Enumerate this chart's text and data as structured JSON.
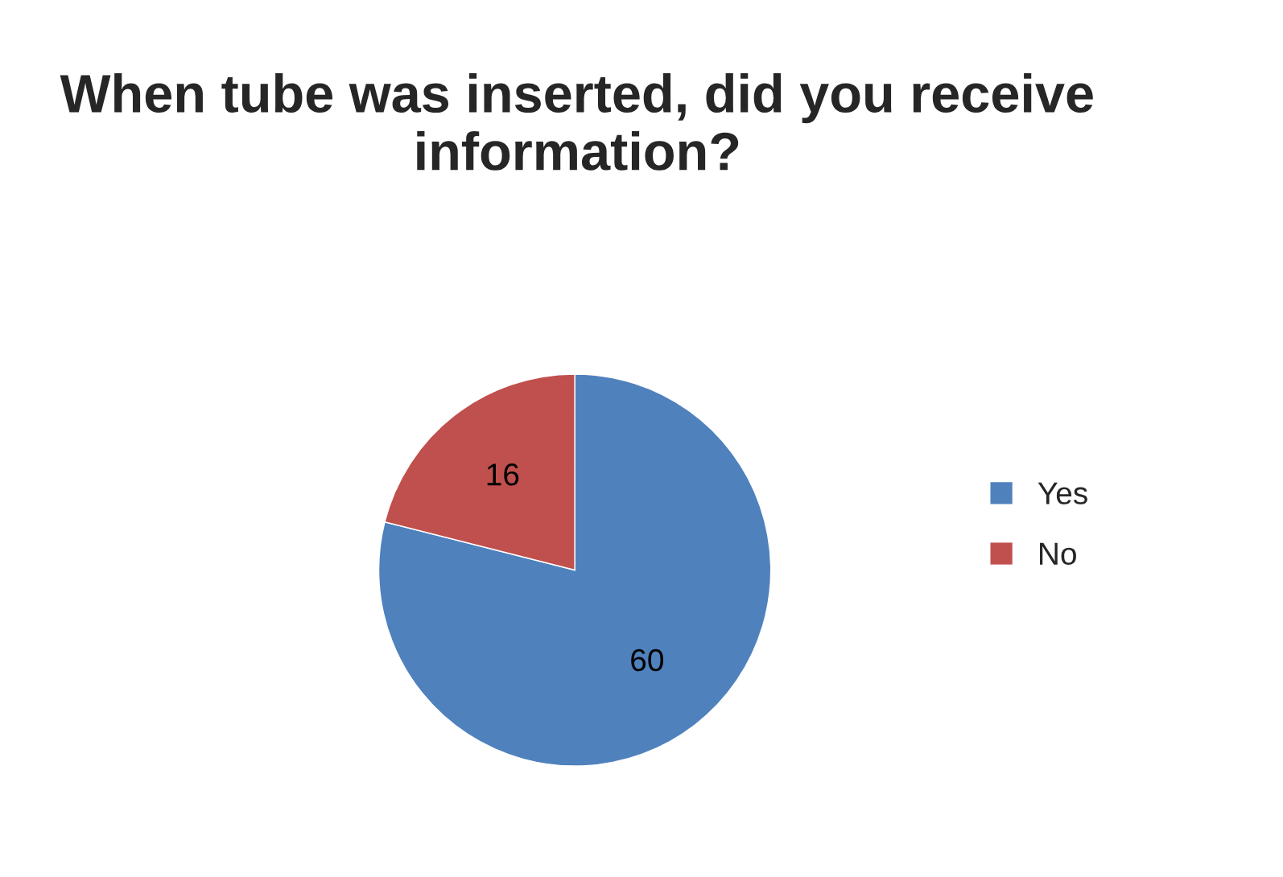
{
  "chart_data": {
    "type": "pie",
    "title": "When tube was inserted, did you receive information?",
    "categories": [
      "Yes",
      "No"
    ],
    "values": [
      60,
      16
    ],
    "colors": [
      "#4f81bd",
      "#c0504d"
    ],
    "data_labels": true,
    "legend": "right"
  }
}
